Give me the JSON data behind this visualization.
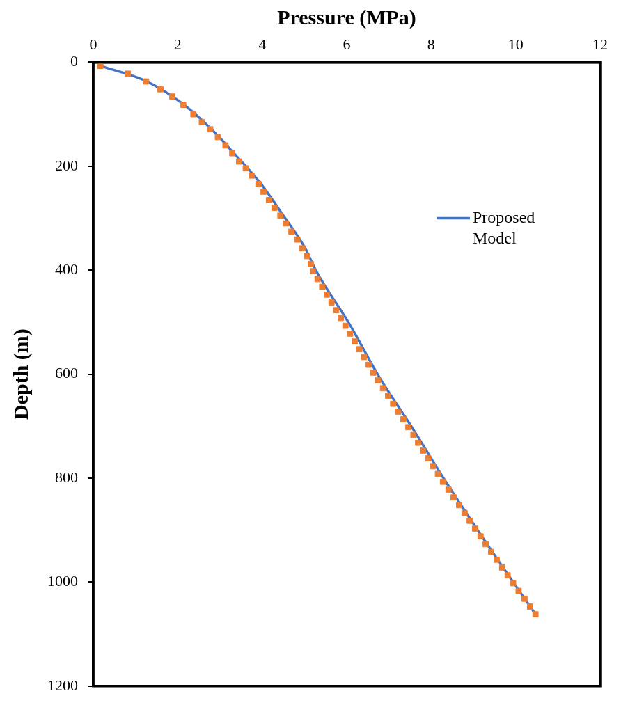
{
  "chart_data": {
    "type": "scatter",
    "xlabel": "Pressure (MPa)",
    "ylabel": "Depth (m)",
    "xlim": [
      0,
      12
    ],
    "xticks": [
      0,
      2,
      4,
      6,
      8,
      10,
      12
    ],
    "ylim": [
      1200,
      0
    ],
    "yticks": [
      0,
      200,
      400,
      600,
      800,
      1000,
      1200
    ],
    "grid": false,
    "legend": "top right",
    "series": [
      {
        "type": "scatter",
        "color": "#ed7d31",
        "marker": "square",
        "x": [
          0.17,
          0.82,
          1.25,
          1.59,
          1.87,
          2.13,
          2.37,
          2.57,
          2.77,
          2.95,
          3.13,
          3.29,
          3.45,
          3.61,
          3.75,
          3.91,
          4.03,
          4.16,
          4.29,
          4.43,
          4.56,
          4.69,
          4.83,
          4.95,
          5.06,
          5.15,
          5.2,
          5.31,
          5.42,
          5.53,
          5.64,
          5.75,
          5.86,
          5.97,
          6.08,
          6.19,
          6.3,
          6.41,
          6.52,
          6.63,
          6.74,
          6.86,
          6.98,
          7.1,
          7.22,
          7.34,
          7.46,
          7.58,
          7.69,
          7.81,
          7.93,
          8.04,
          8.16,
          8.28,
          8.41,
          8.53,
          8.66,
          8.79,
          8.91,
          9.04,
          9.17,
          9.29,
          9.42,
          9.55,
          9.68,
          9.81,
          9.94,
          10.07,
          10.21,
          10.34,
          10.47
        ],
        "values": [
          7,
          22,
          37,
          52,
          66,
          82,
          100,
          115,
          129,
          144,
          160,
          175,
          191,
          204,
          218,
          234,
          249,
          265,
          280,
          295,
          310,
          326,
          341,
          358,
          373,
          388,
          402,
          417,
          432,
          447,
          462,
          477,
          492,
          507,
          522,
          537,
          552,
          567,
          582,
          597,
          612,
          627,
          642,
          657,
          672,
          687,
          702,
          717,
          732,
          747,
          762,
          777,
          792,
          807,
          822,
          837,
          852,
          867,
          882,
          897,
          912,
          927,
          942,
          957,
          972,
          987,
          1002,
          1017,
          1032,
          1047,
          1062
        ]
      },
      {
        "type": "line",
        "name": "Proposed Model",
        "color": "#4472c4",
        "marker": "none",
        "line_style": "solid",
        "x": [
          0.17,
          1.27,
          2.15,
          2.8,
          3.33,
          3.97,
          4.5,
          5.02,
          5.28,
          6.06,
          6.76,
          7.55,
          8.3,
          9.1,
          9.55,
          10.48
        ],
        "values": [
          7,
          37,
          82,
          129,
          175,
          234,
          295,
          358,
          402,
          503,
          604,
          703,
          801,
          900,
          954,
          1063
        ]
      }
    ]
  }
}
